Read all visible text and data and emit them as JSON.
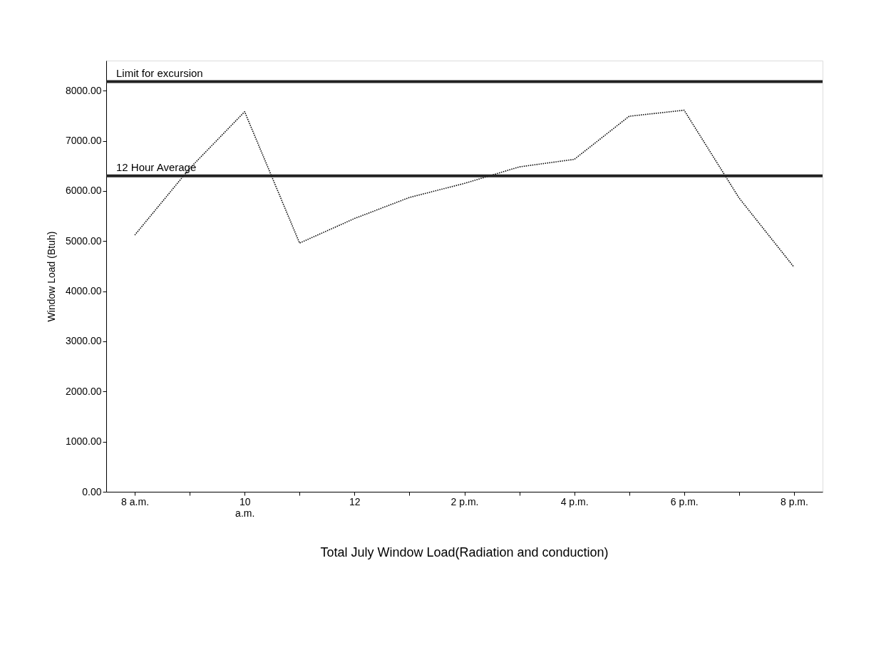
{
  "chart_data": {
    "type": "line",
    "title": "Total July Window Load(Radiation and conduction)",
    "ylabel": "Window Load (Btuh)",
    "categories": [
      "8 a.m.",
      null,
      "10\na.m.",
      null,
      "12",
      null,
      "2 p.m.",
      null,
      "4 p.m.",
      null,
      "6 p.m.",
      null,
      "8 p.m."
    ],
    "series": [
      {
        "color": "#000000",
        "values": [
          5120,
          6450,
          7580,
          4960,
          5450,
          5870,
          6150,
          6480,
          6630,
          7490,
          7610,
          5860,
          4480
        ]
      }
    ],
    "ylim": [
      0,
      8600
    ],
    "yticks": [
      {
        "value": 0,
        "label": "0.00"
      },
      {
        "value": 1000,
        "label": "1000.00"
      },
      {
        "value": 2000,
        "label": "2000.00"
      },
      {
        "value": 3000,
        "label": "3000.00"
      },
      {
        "value": 4000,
        "label": "4000.00"
      },
      {
        "value": 5000,
        "label": "5000.00"
      },
      {
        "value": 6000,
        "label": "6000.00"
      },
      {
        "value": 7000,
        "label": "7000.00"
      },
      {
        "value": 8000,
        "label": "8000.00"
      }
    ],
    "ref_lines": [
      {
        "axis": "y",
        "value": 8180,
        "label": "Limit for excursion",
        "color": "#222222"
      },
      {
        "axis": "y",
        "value": 6300,
        "label": "12 Hour Average",
        "color": "#222222"
      }
    ],
    "grid": false,
    "line_style": "dotted",
    "marker": "none"
  }
}
